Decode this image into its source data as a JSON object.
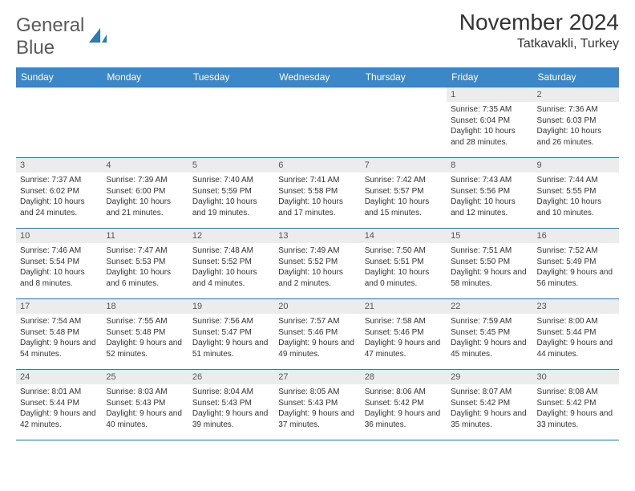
{
  "logo": {
    "part1": "General",
    "part2": "Blue"
  },
  "header": {
    "title": "November 2024",
    "location": "Tatkavakli, Turkey"
  },
  "style": {
    "header_bg": "#3b87c8",
    "border_color": "#2f79b9",
    "daynum_bg": "#ececec",
    "header_fontsize": 12,
    "title_fontsize": 28,
    "cell_fontsize": 10
  },
  "columns": [
    "Sunday",
    "Monday",
    "Tuesday",
    "Wednesday",
    "Thursday",
    "Friday",
    "Saturday"
  ],
  "weeks": [
    [
      null,
      null,
      null,
      null,
      null,
      {
        "n": "1",
        "sr": "7:35 AM",
        "ss": "6:04 PM",
        "dl": "10 hours and 28 minutes."
      },
      {
        "n": "2",
        "sr": "7:36 AM",
        "ss": "6:03 PM",
        "dl": "10 hours and 26 minutes."
      }
    ],
    [
      {
        "n": "3",
        "sr": "7:37 AM",
        "ss": "6:02 PM",
        "dl": "10 hours and 24 minutes."
      },
      {
        "n": "4",
        "sr": "7:39 AM",
        "ss": "6:00 PM",
        "dl": "10 hours and 21 minutes."
      },
      {
        "n": "5",
        "sr": "7:40 AM",
        "ss": "5:59 PM",
        "dl": "10 hours and 19 minutes."
      },
      {
        "n": "6",
        "sr": "7:41 AM",
        "ss": "5:58 PM",
        "dl": "10 hours and 17 minutes."
      },
      {
        "n": "7",
        "sr": "7:42 AM",
        "ss": "5:57 PM",
        "dl": "10 hours and 15 minutes."
      },
      {
        "n": "8",
        "sr": "7:43 AM",
        "ss": "5:56 PM",
        "dl": "10 hours and 12 minutes."
      },
      {
        "n": "9",
        "sr": "7:44 AM",
        "ss": "5:55 PM",
        "dl": "10 hours and 10 minutes."
      }
    ],
    [
      {
        "n": "10",
        "sr": "7:46 AM",
        "ss": "5:54 PM",
        "dl": "10 hours and 8 minutes."
      },
      {
        "n": "11",
        "sr": "7:47 AM",
        "ss": "5:53 PM",
        "dl": "10 hours and 6 minutes."
      },
      {
        "n": "12",
        "sr": "7:48 AM",
        "ss": "5:52 PM",
        "dl": "10 hours and 4 minutes."
      },
      {
        "n": "13",
        "sr": "7:49 AM",
        "ss": "5:52 PM",
        "dl": "10 hours and 2 minutes."
      },
      {
        "n": "14",
        "sr": "7:50 AM",
        "ss": "5:51 PM",
        "dl": "10 hours and 0 minutes."
      },
      {
        "n": "15",
        "sr": "7:51 AM",
        "ss": "5:50 PM",
        "dl": "9 hours and 58 minutes."
      },
      {
        "n": "16",
        "sr": "7:52 AM",
        "ss": "5:49 PM",
        "dl": "9 hours and 56 minutes."
      }
    ],
    [
      {
        "n": "17",
        "sr": "7:54 AM",
        "ss": "5:48 PM",
        "dl": "9 hours and 54 minutes."
      },
      {
        "n": "18",
        "sr": "7:55 AM",
        "ss": "5:48 PM",
        "dl": "9 hours and 52 minutes."
      },
      {
        "n": "19",
        "sr": "7:56 AM",
        "ss": "5:47 PM",
        "dl": "9 hours and 51 minutes."
      },
      {
        "n": "20",
        "sr": "7:57 AM",
        "ss": "5:46 PM",
        "dl": "9 hours and 49 minutes."
      },
      {
        "n": "21",
        "sr": "7:58 AM",
        "ss": "5:46 PM",
        "dl": "9 hours and 47 minutes."
      },
      {
        "n": "22",
        "sr": "7:59 AM",
        "ss": "5:45 PM",
        "dl": "9 hours and 45 minutes."
      },
      {
        "n": "23",
        "sr": "8:00 AM",
        "ss": "5:44 PM",
        "dl": "9 hours and 44 minutes."
      }
    ],
    [
      {
        "n": "24",
        "sr": "8:01 AM",
        "ss": "5:44 PM",
        "dl": "9 hours and 42 minutes."
      },
      {
        "n": "25",
        "sr": "8:03 AM",
        "ss": "5:43 PM",
        "dl": "9 hours and 40 minutes."
      },
      {
        "n": "26",
        "sr": "8:04 AM",
        "ss": "5:43 PM",
        "dl": "9 hours and 39 minutes."
      },
      {
        "n": "27",
        "sr": "8:05 AM",
        "ss": "5:43 PM",
        "dl": "9 hours and 37 minutes."
      },
      {
        "n": "28",
        "sr": "8:06 AM",
        "ss": "5:42 PM",
        "dl": "9 hours and 36 minutes."
      },
      {
        "n": "29",
        "sr": "8:07 AM",
        "ss": "5:42 PM",
        "dl": "9 hours and 35 minutes."
      },
      {
        "n": "30",
        "sr": "8:08 AM",
        "ss": "5:42 PM",
        "dl": "9 hours and 33 minutes."
      }
    ]
  ]
}
